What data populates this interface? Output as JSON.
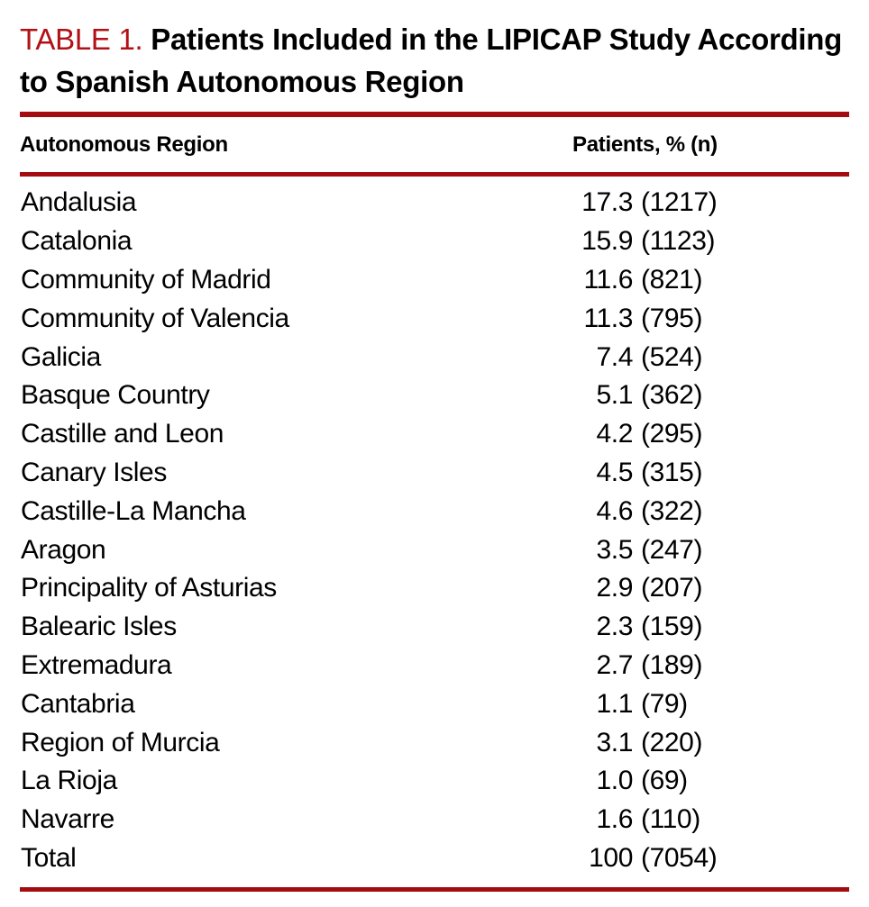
{
  "table": {
    "label": "TABLE 1.",
    "title": "Patients Included in the LIPICAP Study According to Spanish Autonomous Region",
    "columns": {
      "region": "Autonomous Region",
      "patients": "Patients, % (n)"
    },
    "rows": [
      {
        "region": "Andalusia",
        "pct": "17.3",
        "n": "(1217)"
      },
      {
        "region": "Catalonia",
        "pct": "15.9",
        "n": "(1123)"
      },
      {
        "region": "Community of Madrid",
        "pct": "11.6",
        "n": "(821)"
      },
      {
        "region": "Community of Valencia",
        "pct": "11.3",
        "n": "(795)"
      },
      {
        "region": "Galicia",
        "pct": "7.4",
        "n": "(524)"
      },
      {
        "region": "Basque Country",
        "pct": "5.1",
        "n": "(362)"
      },
      {
        "region": "Castille and Leon",
        "pct": "4.2",
        "n": "(295)"
      },
      {
        "region": "Canary Isles",
        "pct": "4.5",
        "n": "(315)"
      },
      {
        "region": "Castille-La Mancha",
        "pct": "4.6",
        "n": "(322)"
      },
      {
        "region": "Aragon",
        "pct": "3.5",
        "n": "(247)"
      },
      {
        "region": "Principality of Asturias",
        "pct": "2.9",
        "n": "(207)"
      },
      {
        "region": "Balearic Isles",
        "pct": "2.3",
        "n": "(159)"
      },
      {
        "region": "Extremadura",
        "pct": "2.7",
        "n": "(189)"
      },
      {
        "region": "Cantabria",
        "pct": "1.1",
        "n": "(79)"
      },
      {
        "region": "Region of Murcia",
        "pct": "3.1",
        "n": "(220)"
      },
      {
        "region": "La Rioja",
        "pct": "1.0",
        "n": "(69)"
      },
      {
        "region": "Navarre",
        "pct": "1.6",
        "n": "(110)"
      },
      {
        "region": "Total",
        "pct": "100",
        "n": "(7054)"
      }
    ],
    "colors": {
      "label_red": "#b11116",
      "rule_red": "#a30d11"
    }
  }
}
